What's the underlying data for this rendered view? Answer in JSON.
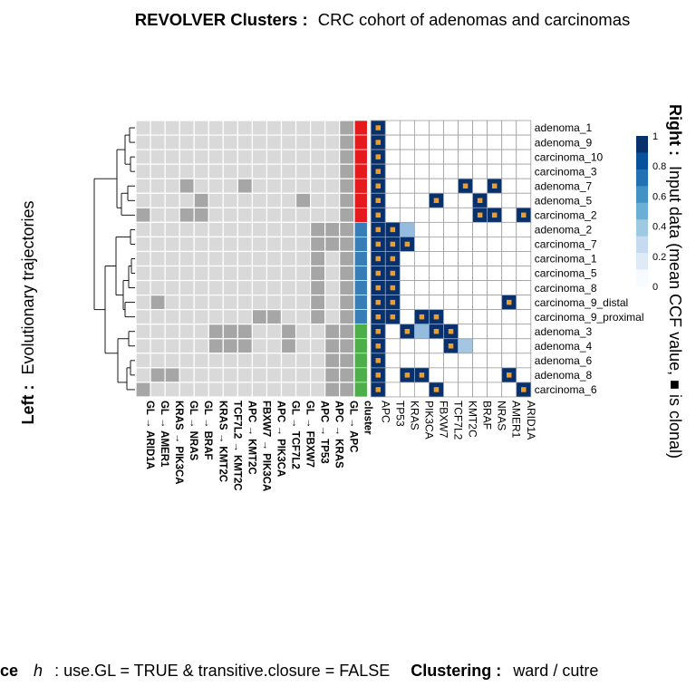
{
  "title": {
    "bold": "REVOLVER Clusters :",
    "normal": "CRC cohort of adenomas and carcinomas"
  },
  "left_label": {
    "bold": "Left :",
    "normal": "Evolutionary trajectories"
  },
  "right_label": {
    "bold": "Right :",
    "normal": "Input data (mean CCF value, ■ is clonal)"
  },
  "footer": {
    "part1_bold": "ce",
    "part1_h": "h",
    "part1_text": ":  use.GL = TRUE & transitive.closure = FALSE",
    "part2_bold": "Clustering :",
    "part2_text": "ward  /  cutre"
  },
  "chart_data": {
    "type": "heatmap",
    "samples": [
      "adenoma_1",
      "adenoma_9",
      "carcinoma_10",
      "carcinoma_3",
      "adenoma_7",
      "adenoma_5",
      "carcinoma_2",
      "adenoma_2",
      "carcinoma_7",
      "carcinoma_1",
      "carcinoma_5",
      "carcinoma_8",
      "carcinoma_9_distal",
      "carcinoma_9_proximal",
      "adenoma_3",
      "adenoma_4",
      "adenoma_6",
      "adenoma_8",
      "carcinoma_6"
    ],
    "trajectories": [
      "GL → ARID1A",
      "GL → AMER1",
      "KRAS → PIK3CA",
      "GL → NRAS",
      "GL → BRAF",
      "KRAS → KMT2C",
      "TCF7L2 → KMT2C",
      "APC → KMT2C",
      "FBXW7 → PIK3CA",
      "APC → PIK3CA",
      "GL → TCF7L2",
      "GL → FBXW7",
      "APC → TP53",
      "APC → KRAS",
      "GL → APC"
    ],
    "trajectory_matrix": [
      [
        0,
        0,
        0,
        0,
        0,
        0,
        0,
        0,
        0,
        0,
        0,
        0,
        0,
        0,
        1
      ],
      [
        0,
        0,
        0,
        0,
        0,
        0,
        0,
        0,
        0,
        0,
        0,
        0,
        0,
        0,
        1
      ],
      [
        0,
        0,
        0,
        0,
        0,
        0,
        0,
        0,
        0,
        0,
        0,
        0,
        0,
        0,
        1
      ],
      [
        0,
        0,
        0,
        0,
        0,
        0,
        0,
        0,
        0,
        0,
        0,
        0,
        0,
        0,
        1
      ],
      [
        0,
        0,
        0,
        1,
        0,
        0,
        0,
        1,
        0,
        0,
        0,
        0,
        0,
        0,
        1
      ],
      [
        0,
        0,
        0,
        0,
        1,
        0,
        0,
        0,
        0,
        0,
        0,
        1,
        0,
        0,
        1
      ],
      [
        1,
        0,
        0,
        1,
        1,
        0,
        0,
        0,
        0,
        0,
        0,
        0,
        0,
        0,
        1
      ],
      [
        0,
        0,
        0,
        0,
        0,
        0,
        0,
        0,
        0,
        0,
        0,
        0,
        1,
        1,
        1
      ],
      [
        0,
        0,
        0,
        0,
        0,
        0,
        0,
        0,
        0,
        0,
        0,
        0,
        1,
        1,
        1
      ],
      [
        0,
        0,
        0,
        0,
        0,
        0,
        0,
        0,
        0,
        0,
        0,
        0,
        1,
        0,
        1
      ],
      [
        0,
        0,
        0,
        0,
        0,
        0,
        0,
        0,
        0,
        0,
        0,
        0,
        1,
        0,
        1
      ],
      [
        0,
        0,
        0,
        0,
        0,
        0,
        0,
        0,
        0,
        0,
        0,
        0,
        1,
        0,
        1
      ],
      [
        0,
        1,
        0,
        0,
        0,
        0,
        0,
        0,
        0,
        0,
        0,
        0,
        1,
        0,
        1
      ],
      [
        0,
        0,
        0,
        0,
        0,
        0,
        0,
        0,
        1,
        1,
        0,
        0,
        1,
        0,
        1
      ],
      [
        0,
        0,
        0,
        0,
        0,
        1,
        1,
        1,
        0,
        0,
        1,
        0,
        0,
        1,
        1
      ],
      [
        0,
        0,
        0,
        0,
        0,
        1,
        1,
        1,
        0,
        0,
        1,
        0,
        0,
        1,
        1
      ],
      [
        0,
        0,
        0,
        0,
        0,
        0,
        0,
        0,
        0,
        0,
        0,
        0,
        0,
        1,
        1
      ],
      [
        0,
        1,
        1,
        0,
        0,
        0,
        0,
        0,
        0,
        0,
        0,
        0,
        0,
        1,
        1
      ],
      [
        1,
        0,
        0,
        0,
        0,
        0,
        0,
        0,
        0,
        0,
        0,
        0,
        0,
        1,
        1
      ]
    ],
    "cluster_label": "cluster",
    "clusters": [
      1,
      1,
      1,
      1,
      1,
      1,
      1,
      2,
      2,
      2,
      2,
      2,
      2,
      2,
      3,
      3,
      3,
      3,
      3
    ],
    "cluster_colors": {
      "1": "#e41a1c",
      "2": "#377eb8",
      "3": "#4daf4a"
    },
    "genes": [
      "APC",
      "TP53",
      "KRAS",
      "PIK3CA",
      "FBXW7",
      "TCF7L2",
      "KMT2C",
      "BRAF",
      "NRAS",
      "AMER1",
      "ARID1A"
    ],
    "ccf_matrix": [
      [
        1,
        0,
        0,
        0,
        0,
        0,
        0,
        0,
        0,
        0,
        0
      ],
      [
        1,
        0,
        0,
        0,
        0,
        0,
        0,
        0,
        0,
        0,
        0
      ],
      [
        1,
        0,
        0,
        0,
        0,
        0,
        0,
        0,
        0,
        0,
        0
      ],
      [
        1,
        0,
        0,
        0,
        0,
        0,
        0,
        0,
        0,
        0,
        0
      ],
      [
        1,
        0,
        0,
        0,
        0,
        0,
        1,
        0,
        1,
        0,
        0
      ],
      [
        1,
        0,
        0,
        0,
        1,
        0,
        0,
        1,
        0,
        0,
        0
      ],
      [
        1,
        0,
        0,
        0,
        0,
        0,
        0,
        1,
        1,
        0,
        1
      ],
      [
        1,
        1,
        0.3,
        0,
        0,
        0,
        0,
        0,
        0,
        0,
        0
      ],
      [
        1,
        1,
        1,
        0,
        0,
        0,
        0,
        0,
        0,
        0,
        0
      ],
      [
        1,
        1,
        0,
        0,
        0,
        0,
        0,
        0,
        0,
        0,
        0
      ],
      [
        1,
        1,
        0,
        0,
        0,
        0,
        0,
        0,
        0,
        0,
        0
      ],
      [
        1,
        1,
        0,
        0,
        0,
        0,
        0,
        0,
        0,
        0,
        0
      ],
      [
        1,
        1,
        0,
        0,
        0,
        0,
        0,
        0,
        0,
        1,
        0
      ],
      [
        1,
        1,
        0,
        1,
        1,
        0,
        0,
        0,
        0,
        0,
        0
      ],
      [
        1,
        0,
        1,
        0.3,
        1,
        1,
        0,
        0,
        0,
        0,
        0
      ],
      [
        1,
        0,
        0,
        0,
        0,
        1,
        0.2,
        0,
        0,
        0,
        0
      ],
      [
        1,
        0,
        0,
        0,
        0,
        0,
        0,
        0,
        0,
        0,
        0
      ],
      [
        1,
        0,
        1,
        1,
        0,
        0,
        0,
        0,
        0,
        1,
        0
      ],
      [
        1,
        0,
        0,
        0,
        1,
        0,
        0,
        0,
        0,
        0,
        1
      ]
    ],
    "clonal_matrix": [
      [
        1,
        0,
        0,
        0,
        0,
        0,
        0,
        0,
        0,
        0,
        0
      ],
      [
        1,
        0,
        0,
        0,
        0,
        0,
        0,
        0,
        0,
        0,
        0
      ],
      [
        1,
        0,
        0,
        0,
        0,
        0,
        0,
        0,
        0,
        0,
        0
      ],
      [
        1,
        0,
        0,
        0,
        0,
        0,
        0,
        0,
        0,
        0,
        0
      ],
      [
        1,
        0,
        0,
        0,
        0,
        0,
        1,
        0,
        1,
        0,
        0
      ],
      [
        1,
        0,
        0,
        0,
        1,
        0,
        0,
        1,
        0,
        0,
        0
      ],
      [
        1,
        0,
        0,
        0,
        0,
        0,
        0,
        1,
        1,
        0,
        1
      ],
      [
        1,
        1,
        0,
        0,
        0,
        0,
        0,
        0,
        0,
        0,
        0
      ],
      [
        1,
        1,
        1,
        0,
        0,
        0,
        0,
        0,
        0,
        0,
        0
      ],
      [
        1,
        1,
        0,
        0,
        0,
        0,
        0,
        0,
        0,
        0,
        0
      ],
      [
        1,
        1,
        0,
        0,
        0,
        0,
        0,
        0,
        0,
        0,
        0
      ],
      [
        1,
        1,
        0,
        0,
        0,
        0,
        0,
        0,
        0,
        0,
        0
      ],
      [
        1,
        1,
        0,
        0,
        0,
        0,
        0,
        0,
        0,
        1,
        0
      ],
      [
        1,
        1,
        0,
        1,
        1,
        0,
        0,
        0,
        0,
        0,
        0
      ],
      [
        1,
        0,
        1,
        0,
        1,
        1,
        0,
        0,
        0,
        0,
        0
      ],
      [
        1,
        0,
        0,
        0,
        0,
        1,
        0,
        0,
        0,
        0,
        0
      ],
      [
        1,
        0,
        0,
        0,
        0,
        0,
        0,
        0,
        0,
        0,
        0
      ],
      [
        1,
        0,
        1,
        1,
        0,
        0,
        0,
        0,
        0,
        1,
        0
      ],
      [
        1,
        0,
        0,
        0,
        1,
        0,
        0,
        0,
        0,
        0,
        1
      ]
    ],
    "legend": {
      "ticks": [
        "1",
        "0.8",
        "0.6",
        "0.4",
        "0.2",
        "0"
      ],
      "tick_values": [
        1,
        0.8,
        0.6,
        0.4,
        0.2,
        0
      ],
      "range": [
        0,
        1
      ],
      "placement": "right"
    },
    "dendrogram": "left",
    "colors": {
      "trajectory_on": "#a6a6a6",
      "trajectory_off": "#d9d9d9",
      "ccf_high": "#08306b",
      "ccf_low": "#f7fbff",
      "clonal_marker": "#f59b1d"
    }
  }
}
